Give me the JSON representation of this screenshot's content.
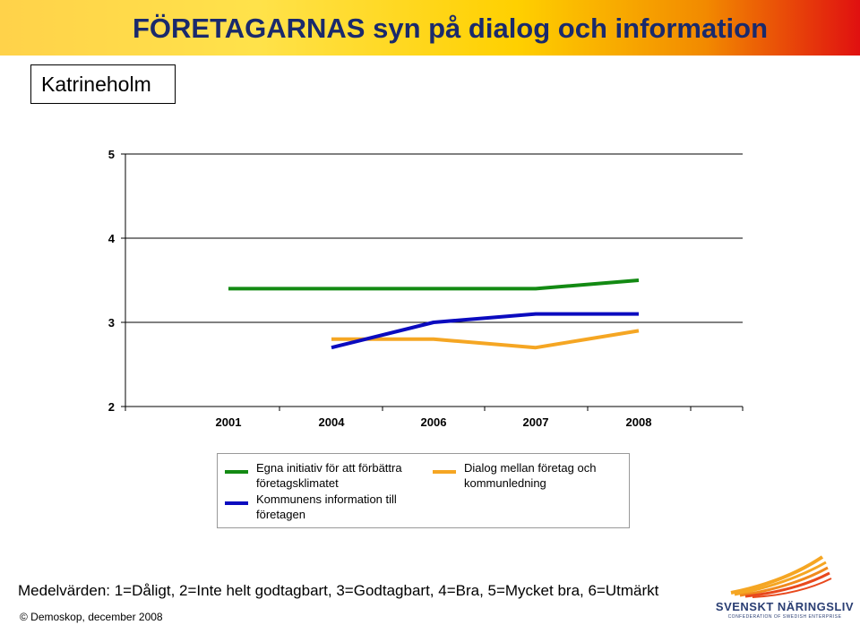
{
  "header": {
    "title": "FÖRETAGARNAS syn på dialog och information",
    "region": "Katrineholm"
  },
  "chart_data": {
    "type": "line",
    "title": "",
    "xlabel": "",
    "ylabel": "",
    "categories": [
      "2001",
      "2004",
      "2006",
      "2007",
      "2008"
    ],
    "ylim": [
      2,
      5
    ],
    "yticks": [
      "2",
      "3",
      "4",
      "5"
    ],
    "grid": true,
    "legend_position": "bottom",
    "series": [
      {
        "name": "Egna initiativ för att förbättra företagsklimatet",
        "color": "#138a13",
        "values": [
          3.4,
          3.4,
          3.4,
          3.4,
          3.5
        ]
      },
      {
        "name": "Kommunens information till företagen",
        "color": "#0b0bbf",
        "values": [
          null,
          2.7,
          3.0,
          3.1,
          3.1
        ]
      },
      {
        "name": "Dialog mellan företag och kommunledning",
        "color": "#f5a623",
        "values": [
          null,
          2.8,
          2.8,
          2.7,
          2.9
        ]
      }
    ]
  },
  "footer": {
    "note": "Medelvärden: 1=Dåligt, 2=Inte helt godtagbart, 3=Godtagbart, 4=Bra, 5=Mycket bra, 6=Utmärkt",
    "copyright": "© Demoskop, december 2008"
  },
  "logo": {
    "name": "SVENSKT NÄRINGSLIV",
    "tagline": "CONFEDERATION OF SWEDISH ENTERPRISE",
    "colors": [
      "#f5a623",
      "#e8491d",
      "#2a3e73"
    ]
  }
}
